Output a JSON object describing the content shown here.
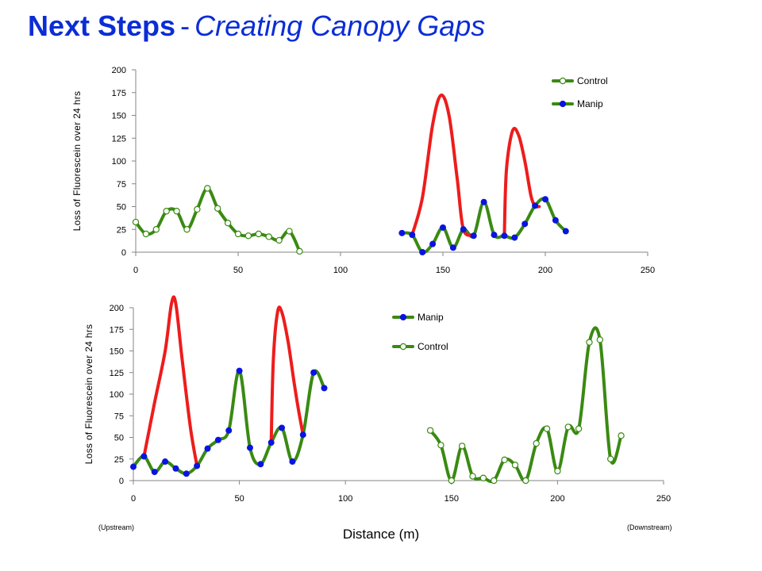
{
  "title": {
    "main": "Next Steps",
    "separator": "-",
    "subtitle": "Creating Canopy Gaps"
  },
  "xlabel": "Distance (m)",
  "notes": {
    "upstream": "(Upstream)",
    "downstream": "(Downstream)"
  },
  "colors": {
    "control": "#3a8a12",
    "manip": "#3a8a12",
    "manip_point": "#0a14e0",
    "highlight": "#ee1c1c"
  },
  "chart_data": [
    {
      "type": "line",
      "ylabel": "Loss of Fluorescein over 24 hrs",
      "xlim": [
        0,
        250
      ],
      "ylim": [
        0,
        200
      ],
      "xticks": [
        "0",
        "50",
        "100",
        "150",
        "200",
        "250"
      ],
      "yticks": [
        "0",
        "25",
        "50",
        "75",
        "100",
        "125",
        "150",
        "175",
        "200"
      ],
      "legend_order": [
        "Control",
        "Manip"
      ],
      "series": [
        {
          "name": "Control",
          "marker": "open",
          "x": [
            0,
            5,
            10,
            15,
            20,
            25,
            30,
            35,
            40,
            45,
            50,
            55,
            60,
            65,
            70,
            75,
            80
          ],
          "y": [
            33,
            20,
            25,
            45,
            45,
            25,
            47,
            70,
            48,
            32,
            20,
            18,
            20,
            17,
            13,
            23,
            1
          ]
        },
        {
          "name": "Manip",
          "marker": "filled",
          "x": [
            130,
            135,
            140,
            145,
            150,
            155,
            160,
            165,
            170,
            175,
            180,
            185,
            190,
            195,
            200,
            205,
            210
          ],
          "y": [
            21,
            19,
            0,
            9,
            27,
            5,
            25,
            18,
            55,
            19,
            18,
            16,
            31,
            51,
            58,
            35,
            23
          ]
        }
      ],
      "highlights": [
        {
          "x": [
            135,
            140,
            145,
            149,
            153,
            157,
            160,
            165
          ],
          "y": [
            19,
            60,
            140,
            172,
            150,
            80,
            25,
            19
          ]
        },
        {
          "x": [
            180,
            181,
            184,
            187,
            190,
            193,
            195,
            197
          ],
          "y": [
            18,
            90,
            133,
            128,
            100,
            62,
            51,
            50
          ]
        }
      ]
    },
    {
      "type": "line",
      "ylabel": "Loss of Fluorescein over 24 hrs",
      "xlim": [
        0,
        250
      ],
      "ylim": [
        0,
        200
      ],
      "xticks": [
        "0",
        "50",
        "100",
        "150",
        "200",
        "250"
      ],
      "yticks": [
        "0",
        "25",
        "50",
        "75",
        "100",
        "125",
        "150",
        "175",
        "200"
      ],
      "legend_order": [
        "Manip",
        "Control"
      ],
      "series": [
        {
          "name": "Manip",
          "marker": "filled",
          "x": [
            0,
            5,
            10,
            15,
            20,
            25,
            30,
            35,
            40,
            45,
            50,
            55,
            60,
            65,
            70,
            75,
            80,
            85,
            90
          ],
          "y": [
            16,
            28,
            10,
            22,
            14,
            8,
            17,
            37,
            47,
            58,
            127,
            38,
            19,
            44,
            61,
            22,
            53,
            125,
            107
          ]
        },
        {
          "name": "Control",
          "marker": "open",
          "x": [
            140,
            145,
            150,
            155,
            160,
            165,
            170,
            175,
            180,
            185,
            190,
            195,
            200,
            205,
            210,
            215,
            220,
            225,
            230
          ],
          "y": [
            58,
            41,
            0,
            40,
            5,
            3,
            0,
            24,
            18,
            0,
            43,
            60,
            11,
            62,
            60,
            160,
            163,
            25,
            52
          ]
        }
      ],
      "highlights": [
        {
          "x": [
            5,
            10,
            15,
            18,
            20,
            23,
            27,
            30
          ],
          "y": [
            28,
            90,
            150,
            205,
            205,
            140,
            60,
            17
          ]
        },
        {
          "x": [
            65,
            66,
            68,
            70,
            73,
            76,
            78,
            80
          ],
          "y": [
            44,
            140,
            195,
            195,
            160,
            110,
            80,
            53
          ]
        }
      ]
    }
  ]
}
